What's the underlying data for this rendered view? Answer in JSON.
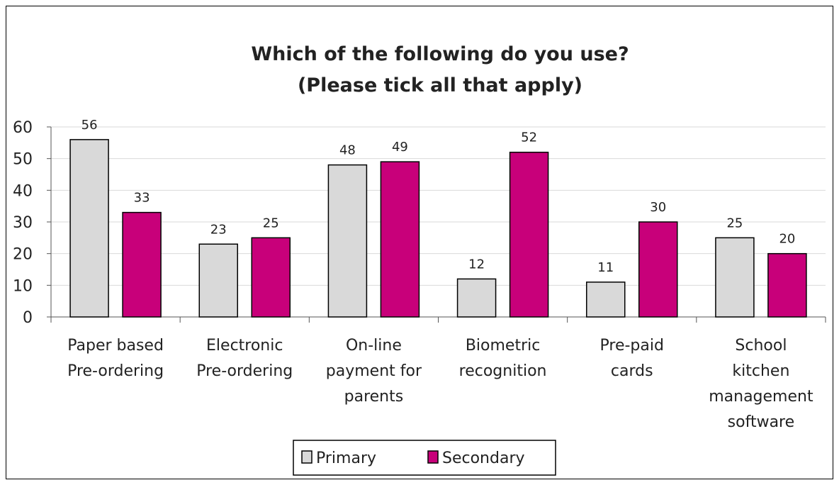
{
  "chart_data": {
    "type": "bar",
    "title_lines": [
      "Which of the following do you use?",
      "(Please tick all that apply)"
    ],
    "categories": [
      [
        "Paper based",
        "Pre-ordering"
      ],
      [
        "Electronic",
        "Pre-ordering"
      ],
      [
        "On-line",
        "payment for",
        "parents"
      ],
      [
        "Biometric",
        "recognition"
      ],
      [
        "Pre-paid",
        "cards"
      ],
      [
        "School",
        "kitchen",
        "management",
        "software"
      ]
    ],
    "series": [
      {
        "name": "Primary",
        "color": "#d9d9d9",
        "values": [
          56,
          23,
          48,
          12,
          11,
          25
        ]
      },
      {
        "name": "Secondary",
        "color": "#c8007a",
        "values": [
          33,
          25,
          49,
          52,
          30,
          20
        ]
      }
    ],
    "ylim": [
      0,
      60
    ],
    "yticks": [
      "0",
      "10",
      "20",
      "30",
      "40",
      "50",
      "60"
    ],
    "grid": true,
    "legend_position": "bottom-center",
    "data_labels": true
  }
}
